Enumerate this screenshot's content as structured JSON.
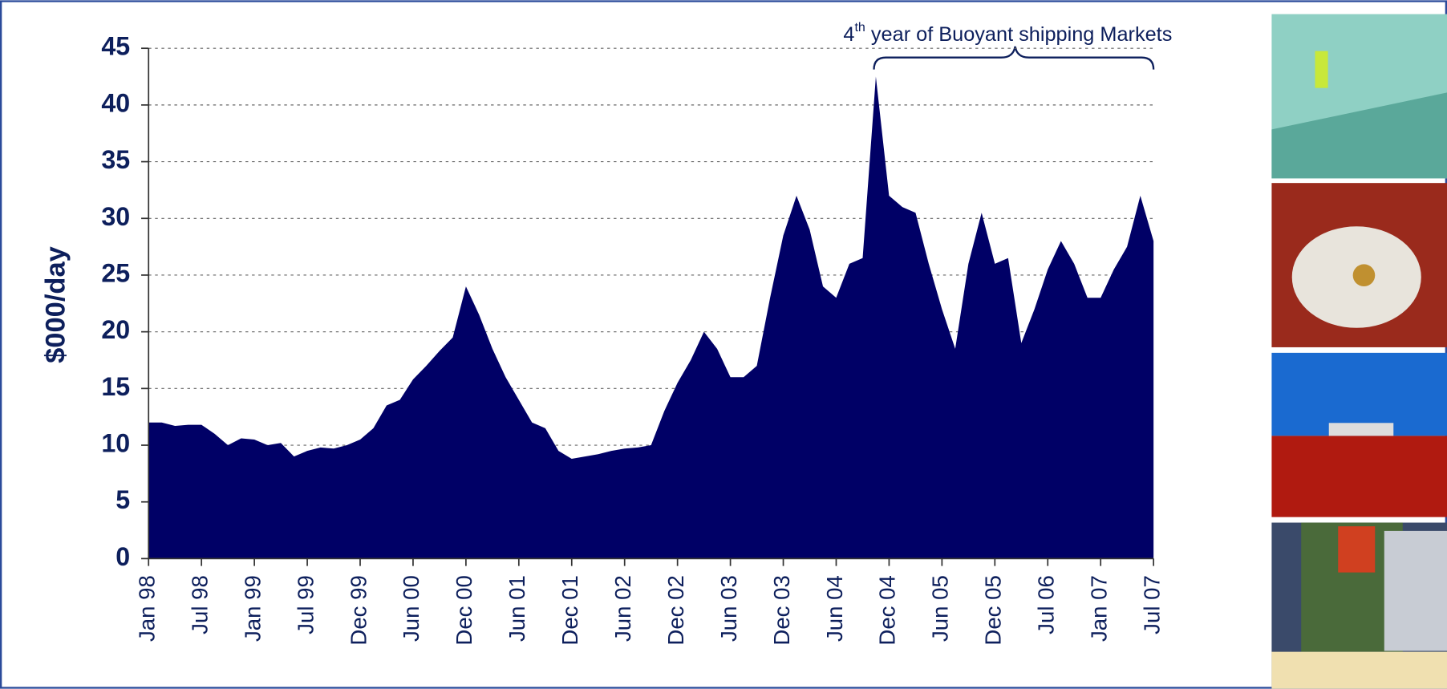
{
  "chart_data": {
    "type": "area",
    "ylabel": "$000/day",
    "annotation": {
      "number": "4",
      "superscript": "th",
      "text": " year of Buoyant shipping Markets"
    },
    "categories": [
      "Jan 98",
      null,
      null,
      null,
      "Jul 98",
      null,
      null,
      null,
      "Jan 99",
      null,
      null,
      null,
      "Jul 99",
      null,
      null,
      null,
      "Dec 99",
      null,
      null,
      null,
      "Jun 00",
      null,
      null,
      null,
      "Dec 00",
      null,
      null,
      null,
      "Jun 01",
      null,
      null,
      null,
      "Dec 01",
      null,
      null,
      null,
      "Jun 02",
      null,
      null,
      null,
      "Dec 02",
      null,
      null,
      null,
      "Jun 03",
      null,
      null,
      null,
      "Dec 03",
      null,
      null,
      null,
      "Jun 04",
      null,
      null,
      null,
      "Dec 04",
      null,
      null,
      null,
      "Jun 05",
      null,
      null,
      null,
      "Dec 05",
      null,
      null,
      null,
      "Jul 06",
      null,
      null,
      null,
      "Jan 07",
      null,
      null,
      null,
      "Jul 07"
    ],
    "values": [
      12,
      12,
      11.7,
      11.8,
      11.8,
      11,
      10,
      10.6,
      10.5,
      10,
      10.2,
      9,
      9.5,
      9.8,
      9.7,
      10,
      10.5,
      11.5,
      13.5,
      14,
      15.8,
      17,
      18.3,
      19.5,
      24,
      21.5,
      18.5,
      16,
      14,
      12,
      11.5,
      9.5,
      8.8,
      9,
      9.2,
      9.5,
      9.7,
      9.8,
      10,
      13,
      15.5,
      17.5,
      20,
      18.5,
      16,
      16,
      17,
      23,
      28.5,
      32,
      29,
      24,
      23,
      26,
      26.5,
      42.5,
      32,
      31,
      30.5,
      26,
      22,
      18.5,
      26,
      30.5,
      26,
      26.5,
      19,
      22,
      25.5,
      28,
      26,
      23,
      23,
      25.5,
      27.5,
      32,
      28
    ],
    "color": "#000066",
    "ylim": [
      0,
      45
    ],
    "yticks": [
      0,
      5,
      10,
      15,
      20,
      25,
      30,
      35,
      40,
      45
    ],
    "grid": true
  }
}
